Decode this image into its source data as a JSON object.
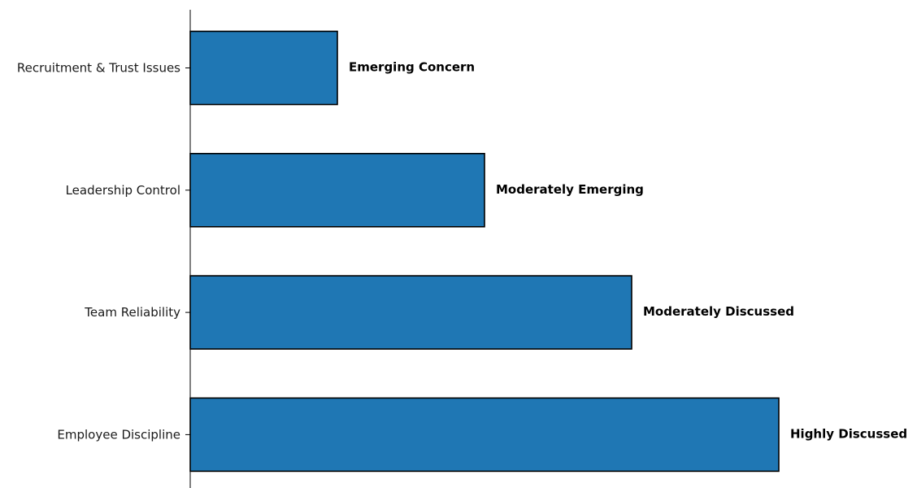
{
  "chart_data": {
    "type": "bar",
    "orientation": "horizontal",
    "categories": [
      "Recruitment & Trust Issues",
      "Leadership Control",
      "Team Reliability",
      "Employee Discipline"
    ],
    "values": [
      1,
      2,
      3,
      4
    ],
    "data_labels": [
      "Emerging Concern",
      "Moderately Emerging",
      "Moderately Discussed",
      "Highly Discussed"
    ],
    "xlim": [
      0,
      4
    ],
    "title": "",
    "xlabel": "",
    "ylabel": "",
    "grid": false,
    "legend": "none",
    "bar_color": "#1f77b4",
    "edge_color": "#000000"
  }
}
